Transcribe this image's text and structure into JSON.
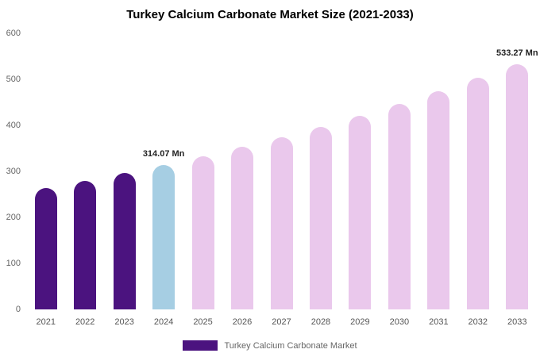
{
  "chart_data": {
    "type": "bar",
    "title": "Turkey Calcium Carbonate Market Size (2021-2033)",
    "xlabel": "",
    "ylabel": "",
    "ylim": [
      0,
      600
    ],
    "y_ticks": [
      0,
      100,
      200,
      300,
      400,
      500,
      600
    ],
    "grid": false,
    "legend_position": "bottom",
    "categories": [
      "2021",
      "2022",
      "2023",
      "2024",
      "2025",
      "2026",
      "2027",
      "2028",
      "2029",
      "2030",
      "2031",
      "2032",
      "2033"
    ],
    "values": [
      263,
      279,
      296,
      314.07,
      333,
      353,
      375,
      397,
      421,
      447,
      474,
      503,
      533.27
    ],
    "bar_colors": [
      "#4b137f",
      "#4b137f",
      "#4b137f",
      "#a6cee3",
      "#eac8ec",
      "#eac8ec",
      "#eac8ec",
      "#eac8ec",
      "#eac8ec",
      "#eac8ec",
      "#eac8ec",
      "#eac8ec",
      "#eac8ec"
    ],
    "data_labels": [
      {
        "category": "2024",
        "text": "314.07 Mn"
      },
      {
        "category": "2033",
        "text": "533.27 Mn"
      }
    ],
    "series": [
      {
        "name": "Turkey Calcium Carbonate Market",
        "color": "#4b137f"
      }
    ]
  },
  "legend": {
    "label": "Turkey Calcium Carbonate Market",
    "color": "#4b137f"
  }
}
